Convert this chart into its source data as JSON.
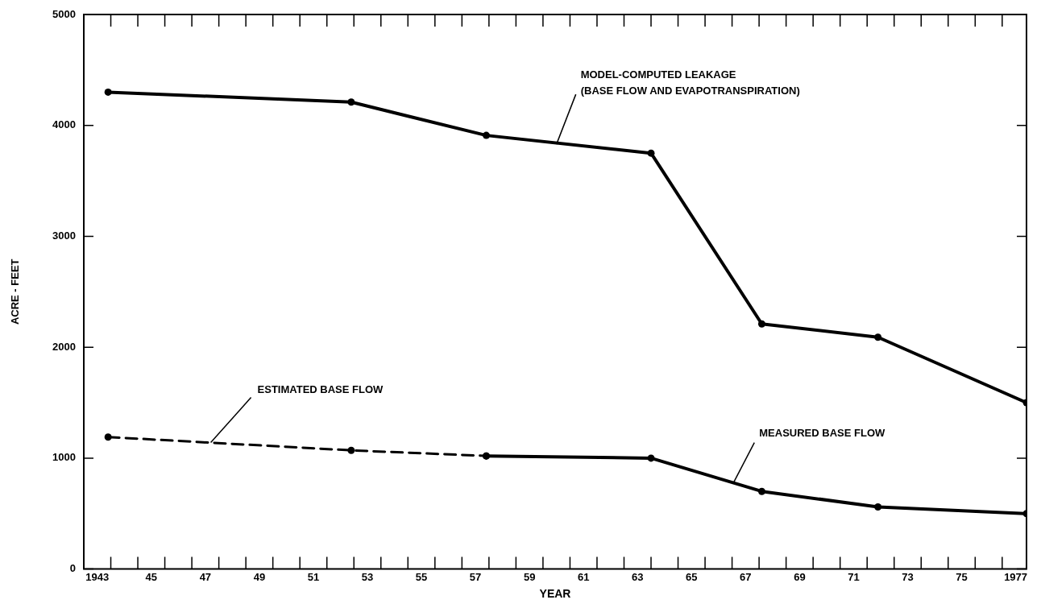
{
  "chart_data": {
    "type": "line",
    "xlabel": "YEAR",
    "ylabel": "ACRE - FEET",
    "xlim": [
      1942.5,
      1977.4
    ],
    "xticks": [
      {
        "value": 1943,
        "label": "1943"
      },
      {
        "value": 1945,
        "label": "45"
      },
      {
        "value": 1947,
        "label": "47"
      },
      {
        "value": 1949,
        "label": "49"
      },
      {
        "value": 1951,
        "label": "51"
      },
      {
        "value": 1953,
        "label": "53"
      },
      {
        "value": 1955,
        "label": "55"
      },
      {
        "value": 1957,
        "label": "57"
      },
      {
        "value": 1959,
        "label": "59"
      },
      {
        "value": 1961,
        "label": "61"
      },
      {
        "value": 1963,
        "label": "63"
      },
      {
        "value": 1965,
        "label": "65"
      },
      {
        "value": 1967,
        "label": "67"
      },
      {
        "value": 1969,
        "label": "69"
      },
      {
        "value": 1971,
        "label": "71"
      },
      {
        "value": 1973,
        "label": "73"
      },
      {
        "value": 1975,
        "label": "75"
      },
      {
        "value": 1977,
        "label": "1977"
      },
      {
        "value": 1943.5,
        "label": null
      },
      {
        "value": 1944.5,
        "label": null
      },
      {
        "value": 1945.5,
        "label": null
      },
      {
        "value": 1946.5,
        "label": null
      },
      {
        "value": 1947.5,
        "label": null
      },
      {
        "value": 1948.5,
        "label": null
      },
      {
        "value": 1949.5,
        "label": null
      },
      {
        "value": 1950.5,
        "label": null
      },
      {
        "value": 1951.5,
        "label": null
      },
      {
        "value": 1952.5,
        "label": null
      },
      {
        "value": 1953.5,
        "label": null
      },
      {
        "value": 1954.5,
        "label": null
      },
      {
        "value": 1955.5,
        "label": null
      },
      {
        "value": 1956.5,
        "label": null
      },
      {
        "value": 1957.5,
        "label": null
      },
      {
        "value": 1958.5,
        "label": null
      },
      {
        "value": 1959.5,
        "label": null
      },
      {
        "value": 1960.5,
        "label": null
      },
      {
        "value": 1961.5,
        "label": null
      },
      {
        "value": 1962.5,
        "label": null
      },
      {
        "value": 1963.5,
        "label": null
      },
      {
        "value": 1964.5,
        "label": null
      },
      {
        "value": 1965.5,
        "label": null
      },
      {
        "value": 1966.5,
        "label": null
      },
      {
        "value": 1967.5,
        "label": null
      },
      {
        "value": 1968.5,
        "label": null
      },
      {
        "value": 1969.5,
        "label": null
      },
      {
        "value": 1970.5,
        "label": null
      },
      {
        "value": 1971.5,
        "label": null
      },
      {
        "value": 1972.5,
        "label": null
      },
      {
        "value": 1973.5,
        "label": null
      },
      {
        "value": 1974.5,
        "label": null
      },
      {
        "value": 1975.5,
        "label": null
      },
      {
        "value": 1976.5,
        "label": null
      }
    ],
    "ylim": [
      0,
      5000
    ],
    "yticks": [
      0,
      1000,
      2000,
      3000,
      4000,
      5000
    ],
    "grid": false,
    "legend": false,
    "marker": "circle",
    "series": [
      {
        "color": "#000000",
        "line_style": "solid",
        "x": [
          1943.4,
          1952.4,
          1957.4,
          1963.5,
          1967.6,
          1971.9,
          1977.4
        ],
        "values": [
          4300,
          4210,
          3910,
          3750,
          2210,
          2090,
          1500
        ]
      },
      {
        "color": "#000000",
        "line_style": "dashed",
        "x": [
          1943.4,
          1952.4,
          1957.4
        ],
        "values": [
          1190,
          1070,
          1020
        ]
      },
      {
        "color": "#000000",
        "line_style": "solid",
        "x": [
          1957.4,
          1963.5,
          1967.6,
          1971.9,
          1977.4
        ],
        "values": [
          1020,
          1000,
          700,
          560,
          500
        ]
      }
    ],
    "annotations": [
      {
        "text": "MODEL-COMPUTED LEAKAGE\n(BASE FLOW AND EVAPOTRANSPIRATION)",
        "x": 1960.0,
        "y": 3830
      },
      {
        "text": "ESTIMATED BASE FLOW",
        "x": 1947.2,
        "y": 1140
      },
      {
        "text": "MEASURED BASE FLOW",
        "x": 1966.55,
        "y": 777
      }
    ]
  }
}
